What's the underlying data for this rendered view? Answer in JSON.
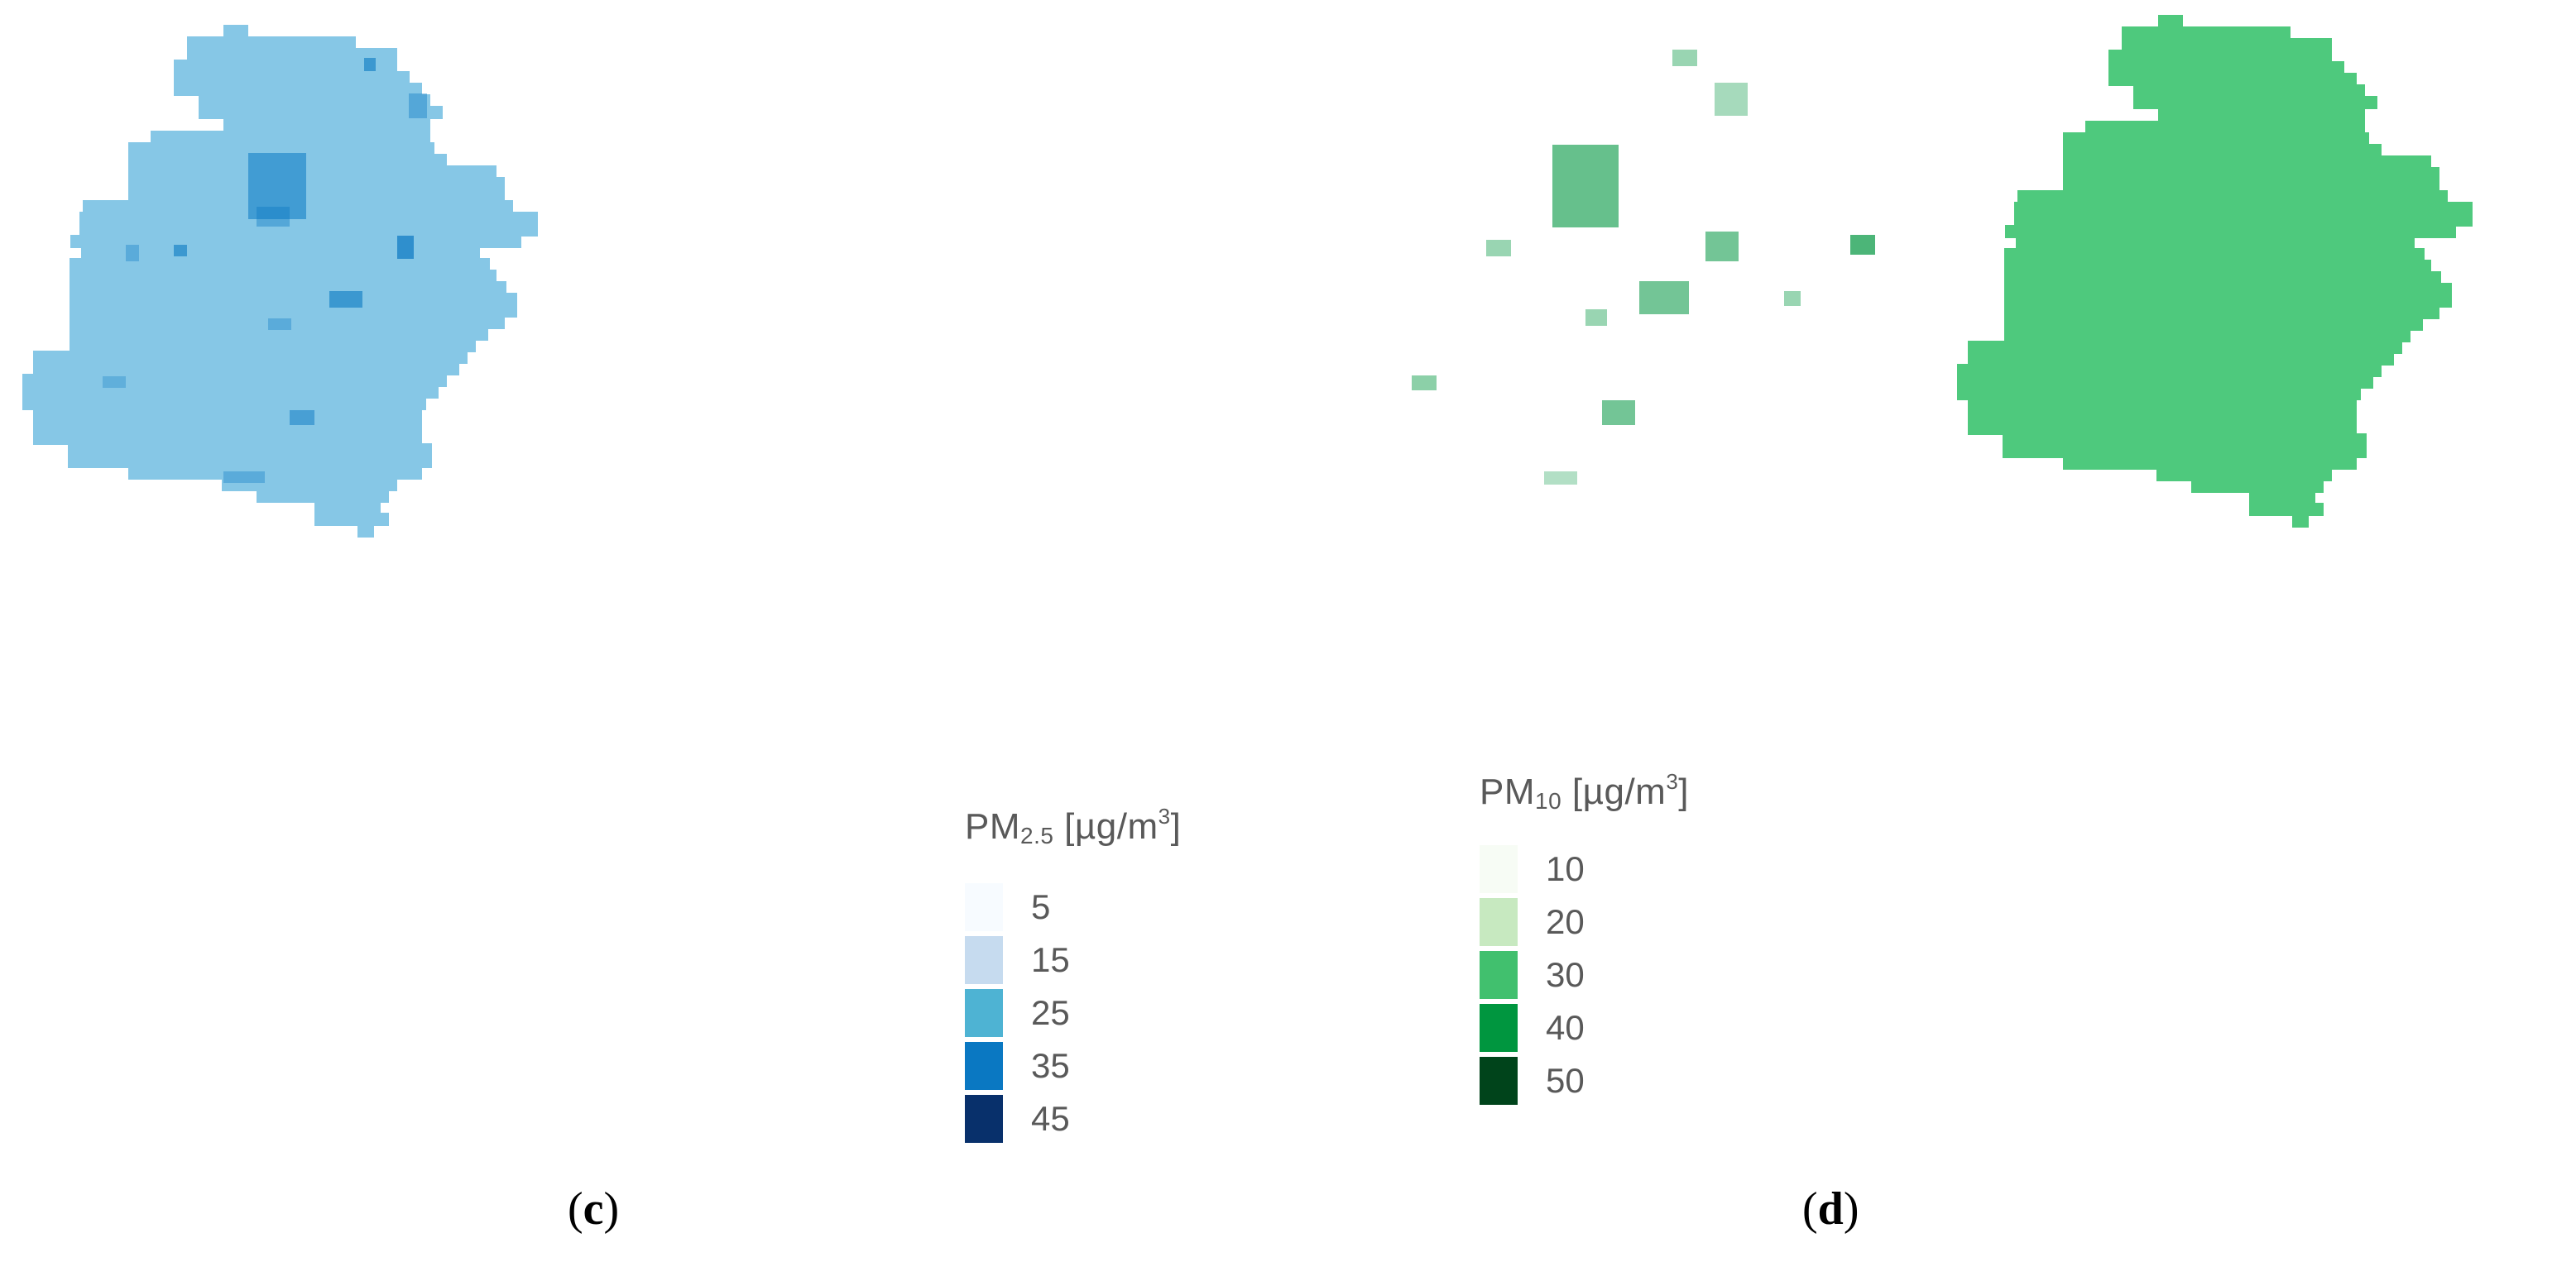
{
  "panels": [
    {
      "caption_letter": "c",
      "pollutant_base": "PM",
      "pollutant_sub": "2.5",
      "unit_pre": "[µg/m",
      "unit_sup": "3",
      "unit_post": "]",
      "fill_color": "#86c7e6",
      "legend": [
        {
          "label": "5",
          "color": "#f7fbff"
        },
        {
          "label": "15",
          "color": "#c6dbef"
        },
        {
          "label": "25",
          "color": "#4eb3d3"
        },
        {
          "label": "35",
          "color": "#0a78c2"
        },
        {
          "label": "45",
          "color": "#08306b"
        }
      ]
    },
    {
      "caption_letter": "d",
      "pollutant_base": "PM",
      "pollutant_sub": "10",
      "unit_pre": "[µg/m",
      "unit_sup": "3",
      "unit_post": "]",
      "fill_color": "#4ec97d",
      "legend": [
        {
          "label": "10",
          "color": "#f7fcf5"
        },
        {
          "label": "20",
          "color": "#c7e9c0"
        },
        {
          "label": "30",
          "color": "#41c06e"
        },
        {
          "label": "40",
          "color": "#00963f"
        },
        {
          "label": "50",
          "color": "#00441b"
        }
      ]
    }
  ]
}
